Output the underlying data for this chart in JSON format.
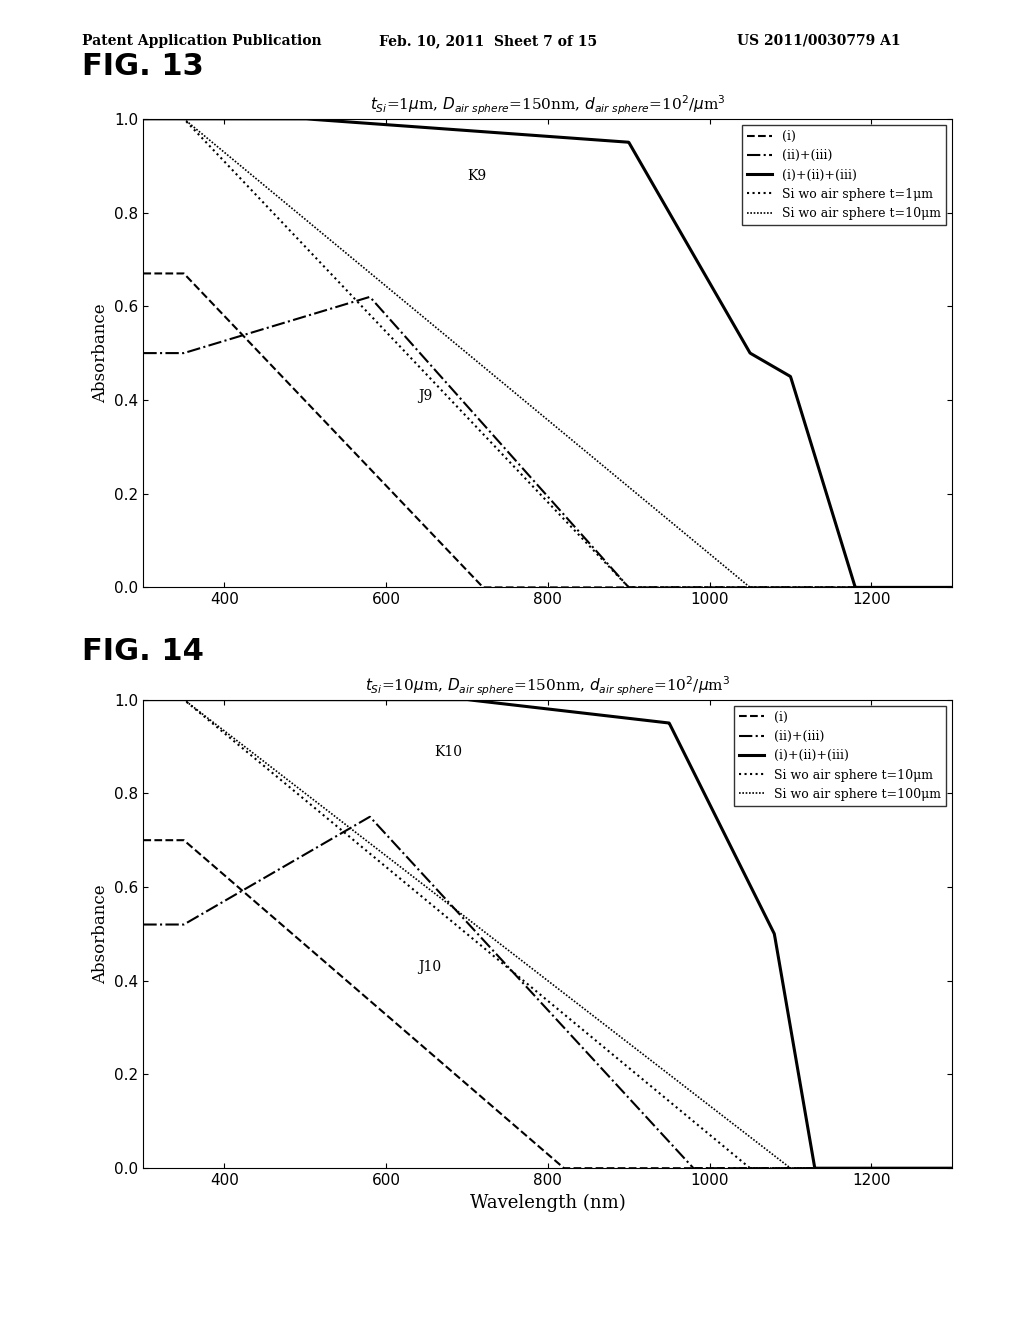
{
  "xlabel": "Wavelength (nm)",
  "ylabel": "Absorbance",
  "xlim": [
    300,
    1300
  ],
  "ylim": [
    0.0,
    1.0
  ],
  "xticks": [
    400,
    600,
    800,
    1000,
    1200
  ],
  "yticks": [
    0.0,
    0.2,
    0.4,
    0.6,
    0.8,
    1.0
  ],
  "fig13_label": "FIG. 13",
  "fig14_label": "FIG. 14",
  "header_left": "Patent Application Publication",
  "header_mid": "Feb. 10, 2011  Sheet 7 of 15",
  "header_right": "US 2011/0030779 A1",
  "background_color": "#ffffff",
  "line_color": "#000000",
  "legend_labels13": [
    "(i)",
    "(ii)+(iii)",
    "(i)+(ii)+(iii)",
    "Si wo air sphere t=1μm",
    "Si wo air sphere t=10μm"
  ],
  "legend_labels14": [
    "(i)",
    "(ii)+(iii)",
    "(i)+(ii)+(iii)",
    "Si wo air sphere t=10μm",
    "Si wo air sphere t=100μm"
  ],
  "title13": "t$_{Si}$=1$\\mu$m, D$_{air\\ sphere}$=150nm, d$_{air\\ sphere}$=10$^{2}$/$\\mu$m$^{3}$",
  "title14": "t$_{Si}$=10$\\mu$m, D$_{air\\ sphere}$=150nm, d$_{air\\ sphere}$=10$^{2}$/$\\mu$m$^{3}$",
  "annot13_K": [
    700,
    0.87,
    "K9"
  ],
  "annot13_J": [
    640,
    0.4,
    "J9"
  ],
  "annot14_K": [
    660,
    0.88,
    "K10"
  ],
  "annot14_J": [
    640,
    0.42,
    "J10"
  ]
}
